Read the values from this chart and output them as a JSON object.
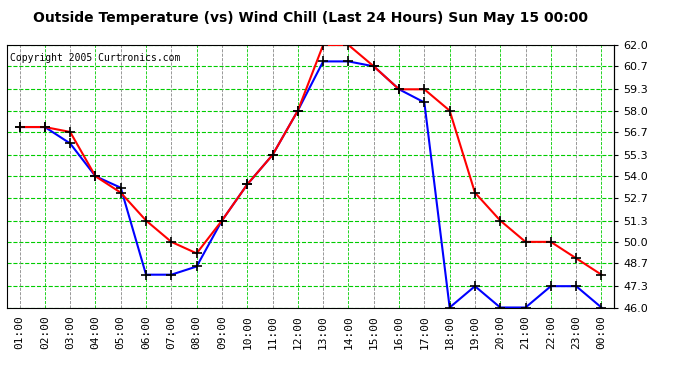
{
  "title": "Outside Temperature (vs) Wind Chill (Last 24 Hours) Sun May 15 00:00",
  "copyright": "Copyright 2005 Curtronics.com",
  "x_labels": [
    "01:00",
    "02:00",
    "03:00",
    "04:00",
    "05:00",
    "06:00",
    "07:00",
    "08:00",
    "09:00",
    "10:00",
    "11:00",
    "12:00",
    "13:00",
    "14:00",
    "15:00",
    "16:00",
    "17:00",
    "18:00",
    "19:00",
    "20:00",
    "21:00",
    "22:00",
    "23:00",
    "00:00"
  ],
  "outside_temp": [
    57.0,
    57.0,
    56.0,
    54.0,
    53.3,
    48.0,
    48.0,
    48.5,
    51.3,
    53.5,
    55.3,
    58.0,
    61.0,
    61.0,
    60.7,
    59.3,
    58.5,
    46.0,
    47.3,
    46.0,
    46.0,
    47.3,
    47.3,
    46.0
  ],
  "wind_chill": [
    57.0,
    57.0,
    56.7,
    54.0,
    53.0,
    51.3,
    50.0,
    49.3,
    51.3,
    53.5,
    55.3,
    58.0,
    62.0,
    62.0,
    60.7,
    59.3,
    59.3,
    58.0,
    53.0,
    51.3,
    50.0,
    50.0,
    49.0,
    48.0
  ],
  "outside_color": "#0000ff",
  "windchill_color": "#ff0000",
  "bg_color": "#ffffff",
  "grid_h_color": "#00cc00",
  "grid_v_color": "#888888",
  "ylim": [
    46.0,
    62.0
  ],
  "yticks": [
    46.0,
    47.3,
    48.7,
    50.0,
    51.3,
    52.7,
    54.0,
    55.3,
    56.7,
    58.0,
    59.3,
    60.7,
    62.0
  ],
  "title_fontsize": 10,
  "copyright_fontsize": 7,
  "tick_fontsize": 8
}
